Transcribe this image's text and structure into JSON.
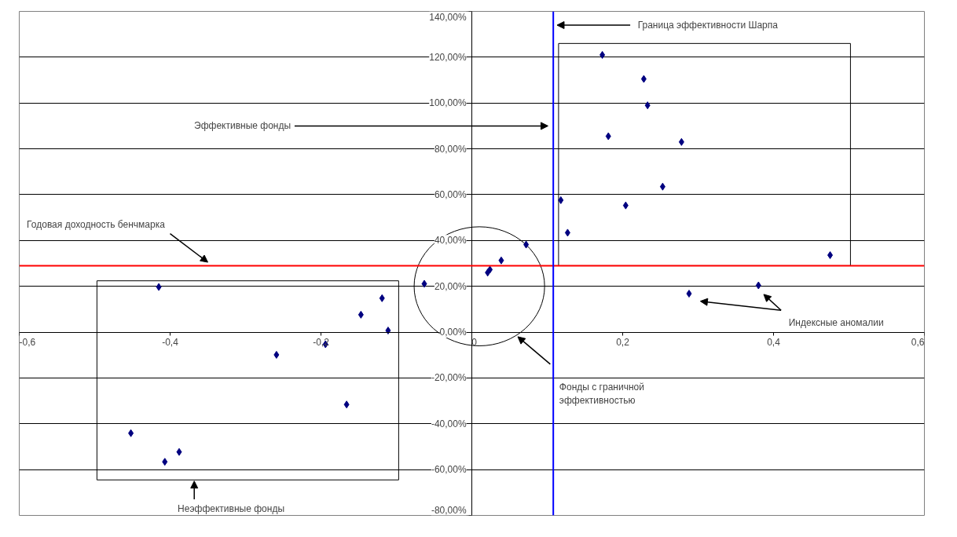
{
  "chart_data": {
    "type": "scatter",
    "marker": "diamond",
    "grid": "y",
    "xlim": [
      -0.6,
      0.6
    ],
    "ylim": [
      -80,
      140
    ],
    "xticks": [
      {
        "value": -0.6,
        "label": "-0,6"
      },
      {
        "value": -0.4,
        "label": "-0,4"
      },
      {
        "value": -0.2,
        "label": "-0,2"
      },
      0,
      {
        "value": 0.2,
        "label": "0,2"
      },
      {
        "value": 0.4,
        "label": "0,4"
      },
      {
        "value": 0.6,
        "label": "0,6"
      }
    ],
    "yticks": [
      {
        "value": -80,
        "label": "-80,00%"
      },
      {
        "value": -60,
        "label": "-60,00%"
      },
      {
        "value": -40,
        "label": "-40,00%"
      },
      {
        "value": -20,
        "label": "-20,00%"
      },
      {
        "value": 0,
        "label": "0,00%"
      },
      {
        "value": 20,
        "label": "20,00%"
      },
      {
        "value": 40,
        "label": "40,00%"
      },
      {
        "value": 60,
        "label": "60,00%"
      },
      {
        "value": 80,
        "label": "80,00%"
      },
      {
        "value": 100,
        "label": "100,00%"
      },
      {
        "value": 120,
        "label": "120,00%"
      },
      {
        "value": 140,
        "label": "140,00%"
      }
    ],
    "series": [
      {
        "color": "#000080",
        "x": [
          -0.415,
          -0.452,
          -0.407,
          -0.388,
          -0.259,
          -0.194,
          -0.166,
          -0.147,
          -0.119,
          -0.111,
          -0.063,
          0.021,
          0.024,
          0.039,
          0.072,
          0.118,
          0.127,
          0.173,
          0.228,
          0.233,
          0.181,
          0.278,
          0.253,
          0.204,
          0.475,
          0.38,
          0.288
        ],
        "values": [
          19.7,
          -44.1,
          -56.6,
          -52.3,
          -9.9,
          -5.3,
          -31.6,
          7.6,
          14.8,
          0.7,
          21.1,
          26,
          27.3,
          31.3,
          38.2,
          57.6,
          43.4,
          121,
          110.5,
          99,
          85.5,
          83,
          63.5,
          55.3,
          33.6,
          20.4,
          16.8
        ]
      }
    ],
    "ref_lines": [
      {
        "axis": "y",
        "value": 29,
        "label": "Годовая доходность бенчмарка",
        "color": "#ff0000"
      },
      {
        "axis": "x",
        "value": 0.108,
        "label": "Граница эффективности Шарпа",
        "color": "#0000ff"
      }
    ],
    "annotations": [
      "Эффективные фонды",
      "Фонды с граничной эффективностью",
      "Индексные аномалии",
      "Неэффективные фонды"
    ]
  }
}
